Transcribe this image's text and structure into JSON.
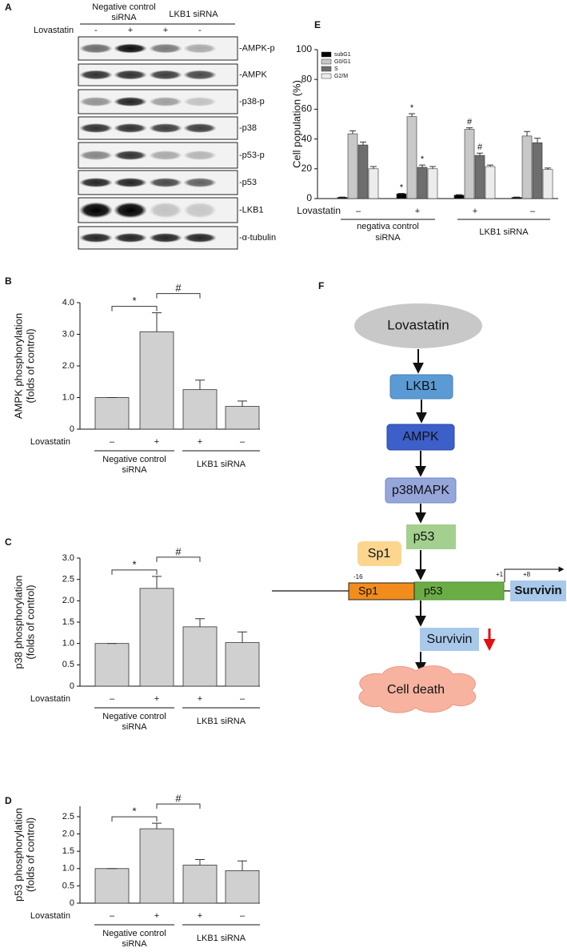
{
  "panel_labels": [
    "A",
    "B",
    "C",
    "D",
    "E",
    "F"
  ],
  "blot": {
    "groups": [
      [
        "Negative control",
        "siRNA"
      ],
      [
        "LKB1 siRNA"
      ]
    ],
    "treatment_label": "Lovastatin",
    "treatments": [
      "-",
      "+",
      "+",
      "-"
    ],
    "bands": [
      "-AMPK-p",
      "-AMPK",
      "-p38-p",
      "-p38",
      "-p53-p",
      "-p53",
      "-LKB1",
      "-α-tubulin"
    ]
  },
  "chart_data": [
    {
      "type": "bar",
      "y_label": [
        "AMPK phosphorylation",
        "(folds of control)"
      ],
      "treatment_label": "Lovastatin",
      "categories": [
        "–",
        "+",
        "+",
        "–"
      ],
      "groups": [
        [
          "Negative control",
          "siRNA"
        ],
        [
          "LKB1 siRNA"
        ]
      ],
      "values": [
        1.0,
        3.08,
        1.25,
        0.72
      ],
      "errors": [
        0,
        0.6,
        0.3,
        0.17
      ],
      "color": "#d0d0d0",
      "ylim": [
        0,
        4
      ],
      "yticks": [
        0,
        {
          "value": 1,
          "label": "1.0"
        },
        {
          "value": 2,
          "label": "2.0"
        },
        {
          "value": 3,
          "label": "3.0"
        },
        {
          "value": 4,
          "label": "4.0"
        }
      ],
      "significance": [
        "*",
        "#"
      ]
    },
    {
      "type": "bar",
      "y_label": [
        "p38 phosphorylation",
        "(folds of control)"
      ],
      "treatment_label": "Lovastatin",
      "categories": [
        "–",
        "+",
        "+",
        "–"
      ],
      "groups": [
        [
          "Negative control",
          "siRNA"
        ],
        [
          "LKB1 siRNA"
        ]
      ],
      "values": [
        1.0,
        2.29,
        1.39,
        1.02
      ],
      "errors": [
        0,
        0.28,
        0.19,
        0.25
      ],
      "color": "#d0d0d0",
      "ylim": [
        0,
        3
      ],
      "yticks": [
        0,
        0.5,
        {
          "value": 1,
          "label": "1.0"
        },
        1.5,
        {
          "value": 2,
          "label": "2.0"
        },
        2.5,
        {
          "value": 3,
          "label": "3.0"
        }
      ],
      "significance": [
        "*",
        "#"
      ]
    },
    {
      "type": "bar",
      "y_label": [
        "p53 phosphorylation",
        "(folds of control)"
      ],
      "treatment_label": "Lovastatin",
      "categories": [
        "–",
        "+",
        "+",
        "–"
      ],
      "groups": [
        [
          "Negative control",
          "siRNA"
        ],
        [
          "LKB1 siRNA"
        ]
      ],
      "values": [
        1.0,
        2.15,
        1.1,
        0.94
      ],
      "errors": [
        0,
        0.16,
        0.16,
        0.28
      ],
      "color": "#d0d0d0",
      "ylim": [
        0,
        2.8
      ],
      "yticks": [
        0,
        0.5,
        {
          "value": 1,
          "label": "1.0"
        },
        1.5,
        {
          "value": 2,
          "label": "2.0"
        },
        2.5
      ],
      "significance": [
        "*",
        "#"
      ]
    },
    {
      "type": "grouped_bar",
      "y_label": "Cell population (%)",
      "treatment_label": "Lovastatin",
      "categories": [
        "–",
        "+",
        "+",
        "–"
      ],
      "groups": [
        [
          "negativa control",
          "siRNA"
        ],
        [
          "LKB1 siRNA"
        ]
      ],
      "series": [
        {
          "name": "subG1",
          "color": "#000000",
          "values": [
            0.8,
            3.2,
            2.3,
            0.8
          ],
          "errors": [
            0.2,
            0.3,
            0.3,
            0.2
          ],
          "markers": [
            null,
            "*",
            null,
            null
          ]
        },
        {
          "name": "G0/G1",
          "color": "#c8c8c8",
          "values": [
            43.5,
            55,
            46.5,
            42
          ],
          "errors": [
            2,
            2,
            1,
            3
          ],
          "markers": [
            null,
            "*",
            "#",
            null
          ]
        },
        {
          "name": "S",
          "color": "#6e6e6e",
          "values": [
            36,
            21,
            29,
            37.5
          ],
          "errors": [
            2,
            1.5,
            1.5,
            3
          ],
          "markers": [
            null,
            "*",
            "#",
            null
          ]
        },
        {
          "name": "G2/M",
          "color": "#ececec",
          "values": [
            20,
            20,
            21.5,
            19.5
          ],
          "errors": [
            1.5,
            1.5,
            1,
            1
          ],
          "markers": [
            null,
            null,
            null,
            null
          ]
        }
      ],
      "ylim": [
        0,
        100
      ],
      "yticks": [
        0,
        20,
        40,
        60,
        80,
        100
      ],
      "legend": "upper-left"
    }
  ],
  "diagram": {
    "source": "Lovastatin",
    "pathway": [
      "LKB1",
      "AMPK",
      "p38MAPK"
    ],
    "p53": "p53",
    "sp1": "Sp1",
    "promoter": {
      "sp1": "Sp1",
      "p53": "p53",
      "gene": "Survivin",
      "positions": [
        "-16",
        "+1",
        "+8"
      ]
    },
    "product": "Survivin",
    "outcome": "Cell death"
  }
}
